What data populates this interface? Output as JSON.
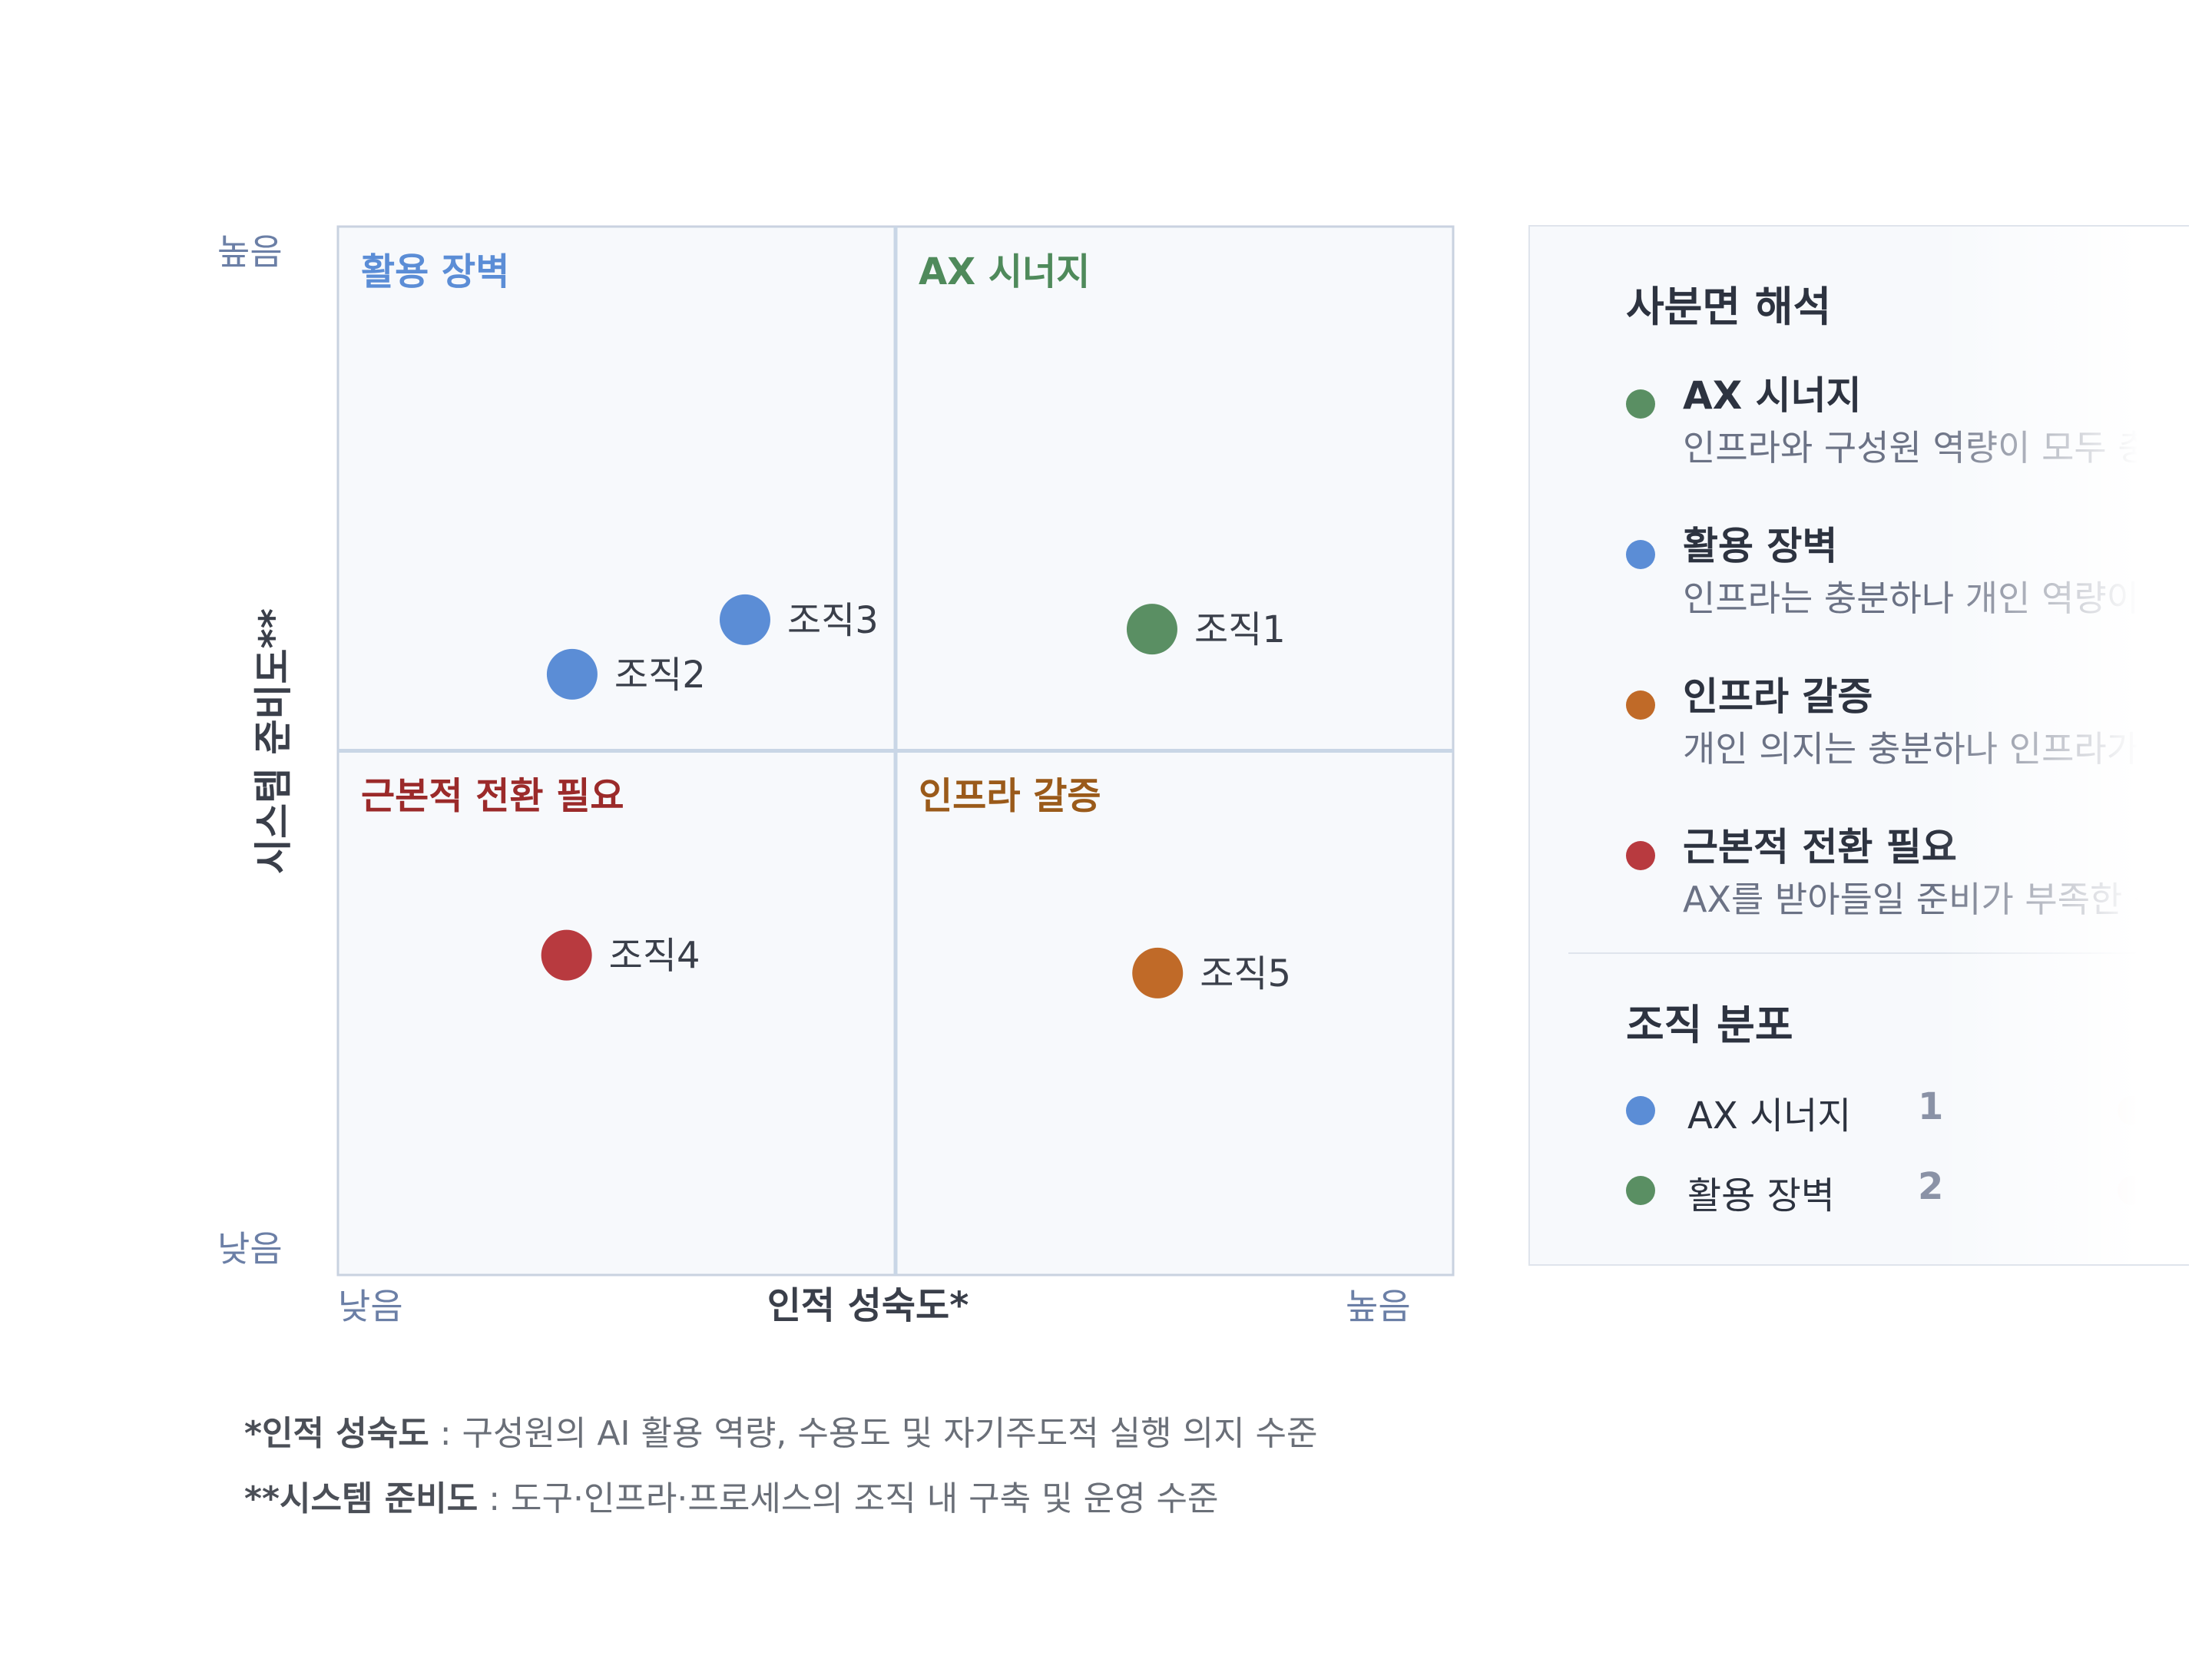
{
  "chart_data": {
    "type": "scatter",
    "xlabel": "인적 성숙도*",
    "ylabel": "시스템 준비도**",
    "x_levels": {
      "low": "낮음",
      "high": "높음"
    },
    "y_levels": {
      "low": "낮음",
      "high": "높음"
    },
    "xlim": [
      0,
      100
    ],
    "ylim": [
      0,
      100
    ],
    "grid": false,
    "quadrants": [
      {
        "label": "활용 장벽",
        "position": "top-left",
        "color": "#5b8dd6"
      },
      {
        "label": "AX 시너지",
        "position": "top-right",
        "color": "#4f8a5b"
      },
      {
        "label": "근본적 전환 필요",
        "position": "bottom-left",
        "color": "#9b2a2a"
      },
      {
        "label": "인프라 갈증",
        "position": "bottom-right",
        "color": "#9a5a1a"
      }
    ],
    "points": [
      {
        "label": "조직1",
        "x": 73,
        "y": 61.6,
        "color": "#5a8f63"
      },
      {
        "label": "조직2",
        "x": 21,
        "y": 57.3,
        "color": "#5b8dd6"
      },
      {
        "label": "조직3",
        "x": 36.5,
        "y": 62.5,
        "color": "#5b8dd6"
      },
      {
        "label": "조직4",
        "x": 20.5,
        "y": 30.5,
        "color": "#b83a3f"
      },
      {
        "label": "조직5",
        "x": 73.5,
        "y": 28.8,
        "color": "#c06a28"
      }
    ]
  },
  "footnotes": [
    {
      "label": "*인적 성숙도",
      "text": " : 구성원의 AI 활용 역량, 수용도 및 자기주도적 실행 의지 수준"
    },
    {
      "label": "**시스템 준비도",
      "text": " :  도구·인프라·프로세스의 조직 내 구축 및 운영 수준"
    }
  ],
  "panel": {
    "interpretation_title": "사분면 해석",
    "interpretations": [
      {
        "name": "AX 시너지",
        "desc": "인프라와 구성원 역량이 모두 충",
        "color": "#5a8f63"
      },
      {
        "name": "활용 장벽",
        "desc": "인프라는 충분하나 개인 역량이",
        "color": "#5b8dd6"
      },
      {
        "name": "인프라 갈증",
        "desc": "개인 의지는 충분하나 인프라가",
        "color": "#c06a28"
      },
      {
        "name": "근본적 전환 필요",
        "desc": "AX를 받아들일 준비가 부족한 상",
        "color": "#b83a3f"
      }
    ],
    "distribution_title": "조직 분포",
    "distribution": [
      {
        "name": "AX 시너지",
        "count": "1",
        "color": "#5b8dd6",
        "ghost_color": "#e8b08a"
      },
      {
        "name": "활용 장벽",
        "count": "2",
        "color": "#5a8f63",
        "ghost_color": "#e09aa0"
      }
    ]
  }
}
